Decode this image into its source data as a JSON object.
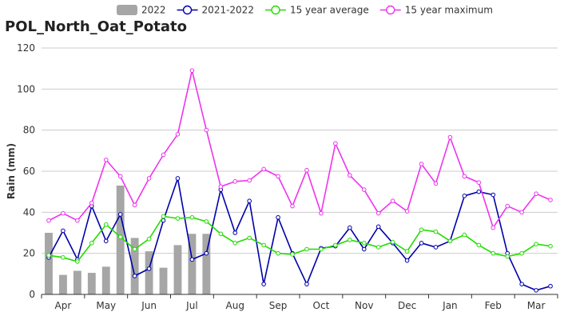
{
  "chart_data": {
    "type": "line",
    "title": "POL_North_Oat_Potato",
    "ylabel": "Rain (mm)",
    "xlabel": "",
    "ylim": [
      0,
      120
    ],
    "yticks": [
      0,
      20,
      40,
      60,
      80,
      100,
      120
    ],
    "grid": "horizontal",
    "legend_position": "top",
    "month_labels": [
      "Apr",
      "May",
      "Jun",
      "Jul",
      "Aug",
      "Sep",
      "Oct",
      "Nov",
      "Dec",
      "Jan",
      "Feb",
      "Mar"
    ],
    "points_per_month": 3,
    "series": [
      {
        "name": "2022",
        "kind": "bar",
        "color": "#a6a6a6",
        "values": [
          30,
          9.5,
          11.5,
          10.5,
          13.5,
          53,
          27.5,
          21,
          13,
          24,
          29.5,
          29.5
        ]
      },
      {
        "name": "2021-2022",
        "kind": "line",
        "color": "#0000aa",
        "values": [
          18,
          31,
          17,
          43,
          26,
          39,
          9,
          12.5,
          36,
          56.5,
          17,
          20,
          51,
          30,
          45.5,
          5,
          37.5,
          20,
          5,
          22.5,
          23.5,
          32.5,
          22,
          33,
          25,
          16.5,
          25,
          23,
          26,
          48,
          50,
          48.5,
          20,
          5,
          2,
          4
        ]
      },
      {
        "name": "15 year average",
        "kind": "line",
        "color": "#22dd00",
        "values": [
          19,
          18,
          16,
          25,
          34,
          28,
          22,
          27,
          38,
          37,
          37.5,
          35.5,
          29.5,
          25,
          27.5,
          24,
          20,
          19.5,
          22,
          22,
          24,
          26.5,
          25,
          23,
          25.5,
          21,
          31.5,
          30.5,
          26,
          29,
          24,
          20,
          18.5,
          20,
          24.5,
          23.5
        ]
      },
      {
        "name": "15 year maximum",
        "kind": "line",
        "color": "#ee33ee",
        "values": [
          36,
          39.5,
          36,
          44.5,
          65.5,
          57.5,
          43.5,
          56.5,
          68,
          78,
          109,
          80,
          52.5,
          55,
          55.5,
          61,
          57.5,
          43,
          60.5,
          39.5,
          73.5,
          58,
          51,
          39.5,
          45.5,
          40.5,
          63.5,
          54,
          76.5,
          57.5,
          54.5,
          32.5,
          43,
          40,
          49,
          46
        ]
      }
    ]
  }
}
